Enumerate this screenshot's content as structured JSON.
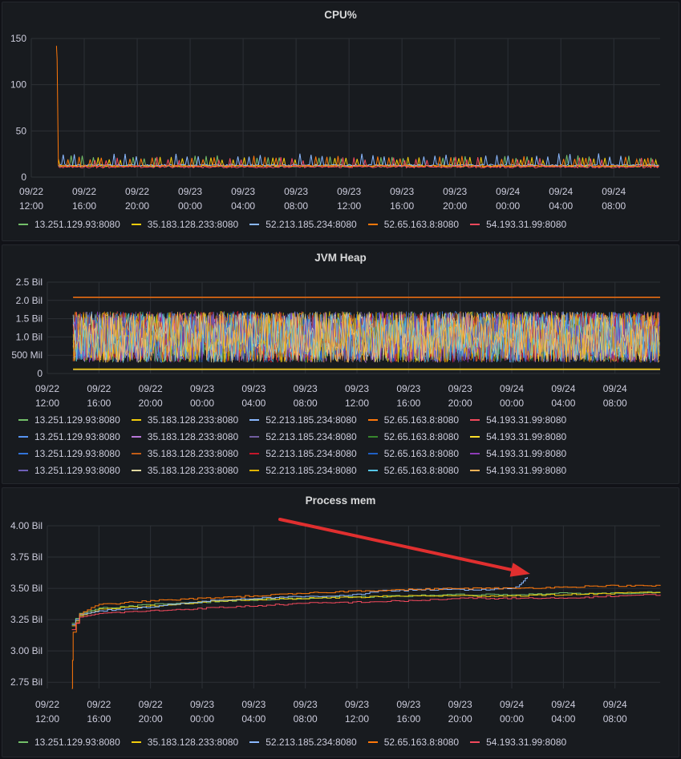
{
  "colors": {
    "green": "#73bf69",
    "yellow": "#f2cc0c",
    "blue": "#8ab8ff",
    "orange": "#ff780a",
    "red": "#f2495c",
    "darkblue": "#5794f2",
    "purple": "#b877d9",
    "violet": "#705da0",
    "darkgreen": "#37872d",
    "lightyellow": "#fade2a",
    "skyblue": "#3274d9",
    "darkorange": "#c15c17",
    "darkred": "#c4162a",
    "navy": "#1f60c4",
    "magenta": "#8f3bb8",
    "indigo": "#6e5fb8",
    "khaki": "#e0d8a0",
    "gold": "#e0b400",
    "cyan": "#56c7e8",
    "amber": "#ffb357",
    "arrow": "#e02f2f"
  },
  "x_ticks": [
    "09/22\n12:00",
    "09/22\n16:00",
    "09/22\n20:00",
    "09/23\n00:00",
    "09/23\n04:00",
    "09/23\n08:00",
    "09/23\n12:00",
    "09/23\n16:00",
    "09/23\n20:00",
    "09/24\n00:00",
    "09/24\n04:00",
    "09/24\n08:00"
  ],
  "chart_data": [
    {
      "type": "line",
      "title": "CPU%",
      "x_range": [
        "09/22 12:00",
        "09/24 11:30"
      ],
      "ylim": [
        0,
        150
      ],
      "y_ticks": [
        "0",
        "50",
        "100",
        "150"
      ],
      "y_tick_values": [
        0,
        50,
        100,
        150
      ],
      "grid": true,
      "legend_position": "bottom",
      "series": [
        {
          "name": "13.251.129.93:8080",
          "color": "green",
          "baseline": 12,
          "spike": 22
        },
        {
          "name": "35.183.128.233:8080",
          "color": "yellow",
          "baseline": 12,
          "spike": 20
        },
        {
          "name": "52.213.185.234:8080",
          "color": "blue",
          "baseline": 13,
          "spike": 24
        },
        {
          "name": "52.65.163.8:8080",
          "color": "orange",
          "baseline": 12,
          "spike": 21,
          "initial_peak": 142
        },
        {
          "name": "54.193.31.99:8080",
          "color": "red",
          "baseline": 11,
          "spike": 20
        }
      ]
    },
    {
      "type": "line",
      "title": "JVM Heap",
      "x_range": [
        "09/22 12:00",
        "09/24 11:30"
      ],
      "ylim": [
        0,
        2500000000
      ],
      "y_ticks": [
        "0",
        "500 Mil",
        "1.0 Bil",
        "1.5 Bil",
        "2.0 Bil",
        "2.5 Bil"
      ],
      "y_tick_values": [
        0,
        500000000,
        1000000000,
        1500000000,
        2000000000,
        2500000000
      ],
      "grid": true,
      "legend_position": "bottom",
      "constant_lines": [
        {
          "value": 2080000000,
          "color": "orange"
        },
        {
          "value": 2090000000,
          "color": "darkorange"
        },
        {
          "value": 110000000,
          "color": "khaki"
        },
        {
          "value": 120000000,
          "color": "gold"
        }
      ],
      "oscillation_range": [
        300000000,
        1700000000
      ],
      "series": [
        {
          "name": "13.251.129.93:8080",
          "color": "green"
        },
        {
          "name": "35.183.128.233:8080",
          "color": "yellow"
        },
        {
          "name": "52.213.185.234:8080",
          "color": "blue"
        },
        {
          "name": "52.65.163.8:8080",
          "color": "orange"
        },
        {
          "name": "54.193.31.99:8080",
          "color": "red"
        },
        {
          "name": "13.251.129.93:8080",
          "color": "darkblue"
        },
        {
          "name": "35.183.128.233:8080",
          "color": "purple"
        },
        {
          "name": "52.213.185.234:8080",
          "color": "violet"
        },
        {
          "name": "52.65.163.8:8080",
          "color": "darkgreen"
        },
        {
          "name": "54.193.31.99:8080",
          "color": "lightyellow"
        },
        {
          "name": "13.251.129.93:8080",
          "color": "skyblue"
        },
        {
          "name": "35.183.128.233:8080",
          "color": "darkorange"
        },
        {
          "name": "52.213.185.234:8080",
          "color": "darkred"
        },
        {
          "name": "52.65.163.8:8080",
          "color": "navy"
        },
        {
          "name": "54.193.31.99:8080",
          "color": "magenta"
        },
        {
          "name": "13.251.129.93:8080",
          "color": "indigo"
        },
        {
          "name": "35.183.128.233:8080",
          "color": "khaki"
        },
        {
          "name": "52.213.185.234:8080",
          "color": "gold"
        },
        {
          "name": "52.65.163.8:8080",
          "color": "cyan"
        },
        {
          "name": "54.193.31.99:8080",
          "color": "amber"
        }
      ]
    },
    {
      "type": "line",
      "title": "Process mem",
      "x_range": [
        "09/22 12:00",
        "09/24 11:30"
      ],
      "ylim": [
        2700000000,
        4000000000
      ],
      "y_ticks": [
        "2.75 Bil",
        "3.00 Bil",
        "3.25 Bil",
        "3.50 Bil",
        "3.75 Bil",
        "4.00 Bil"
      ],
      "y_tick_values": [
        2750000000,
        3000000000,
        3250000000,
        3500000000,
        3750000000,
        4000000000
      ],
      "grid": true,
      "legend_position": "bottom",
      "annotation": "red arrow pointing at the blue series spike near 09/24 01:30",
      "series": [
        {
          "name": "13.251.129.93:8080",
          "color": "green",
          "points": [
            [
              1.9,
              3.22
            ],
            [
              2.5,
              3.3
            ],
            [
              4,
              3.34
            ],
            [
              8,
              3.37
            ],
            [
              12,
              3.39
            ],
            [
              16,
              3.41
            ],
            [
              20,
              3.42
            ],
            [
              24,
              3.43
            ],
            [
              28,
              3.44
            ],
            [
              32,
              3.45
            ],
            [
              36,
              3.45
            ],
            [
              40,
              3.46
            ],
            [
              44,
              3.46
            ],
            [
              47.5,
              3.47
            ]
          ]
        },
        {
          "name": "35.183.128.233:8080",
          "color": "yellow",
          "points": [
            [
              1.9,
              3.2
            ],
            [
              2.5,
              3.28
            ],
            [
              4,
              3.33
            ],
            [
              8,
              3.36
            ],
            [
              12,
              3.39
            ],
            [
              16,
              3.41
            ],
            [
              20,
              3.42
            ],
            [
              24,
              3.43
            ],
            [
              28,
              3.44
            ],
            [
              32,
              3.44
            ],
            [
              36,
              3.44
            ],
            [
              40,
              3.45
            ],
            [
              44,
              3.46
            ],
            [
              47.5,
              3.47
            ]
          ]
        },
        {
          "name": "52.213.185.234:8080",
          "color": "blue",
          "points": [
            [
              1.9,
              3.21
            ],
            [
              2.5,
              3.29
            ],
            [
              4,
              3.32
            ],
            [
              8,
              3.35
            ],
            [
              10,
              3.38
            ],
            [
              14,
              3.41
            ],
            [
              18,
              3.43
            ],
            [
              22,
              3.44
            ],
            [
              24,
              3.45
            ],
            [
              26,
              3.48
            ],
            [
              30,
              3.49
            ],
            [
              34,
              3.49
            ],
            [
              36,
              3.5
            ],
            [
              36.6,
              3.53
            ],
            [
              36.9,
              3.56
            ],
            [
              37.2,
              3.59
            ]
          ]
        },
        {
          "name": "52.65.163.8:8080",
          "color": "orange",
          "points": [
            [
              1.9,
              2.7
            ],
            [
              2.0,
              3.15
            ],
            [
              2.5,
              3.3
            ],
            [
              4,
              3.37
            ],
            [
              8,
              3.4
            ],
            [
              12,
              3.42
            ],
            [
              16,
              3.44
            ],
            [
              20,
              3.46
            ],
            [
              24,
              3.48
            ],
            [
              28,
              3.49
            ],
            [
              32,
              3.5
            ],
            [
              36,
              3.5
            ],
            [
              40,
              3.51
            ],
            [
              43,
              3.52
            ],
            [
              47.5,
              3.52
            ]
          ]
        },
        {
          "name": "54.193.31.99:8080",
          "color": "red",
          "points": [
            [
              1.9,
              3.17
            ],
            [
              2.5,
              3.27
            ],
            [
              4,
              3.3
            ],
            [
              8,
              3.32
            ],
            [
              12,
              3.34
            ],
            [
              16,
              3.36
            ],
            [
              20,
              3.38
            ],
            [
              24,
              3.39
            ],
            [
              28,
              3.4
            ],
            [
              32,
              3.42
            ],
            [
              36,
              3.42
            ],
            [
              40,
              3.42
            ],
            [
              44,
              3.44
            ],
            [
              47.5,
              3.45
            ]
          ]
        }
      ]
    }
  ]
}
